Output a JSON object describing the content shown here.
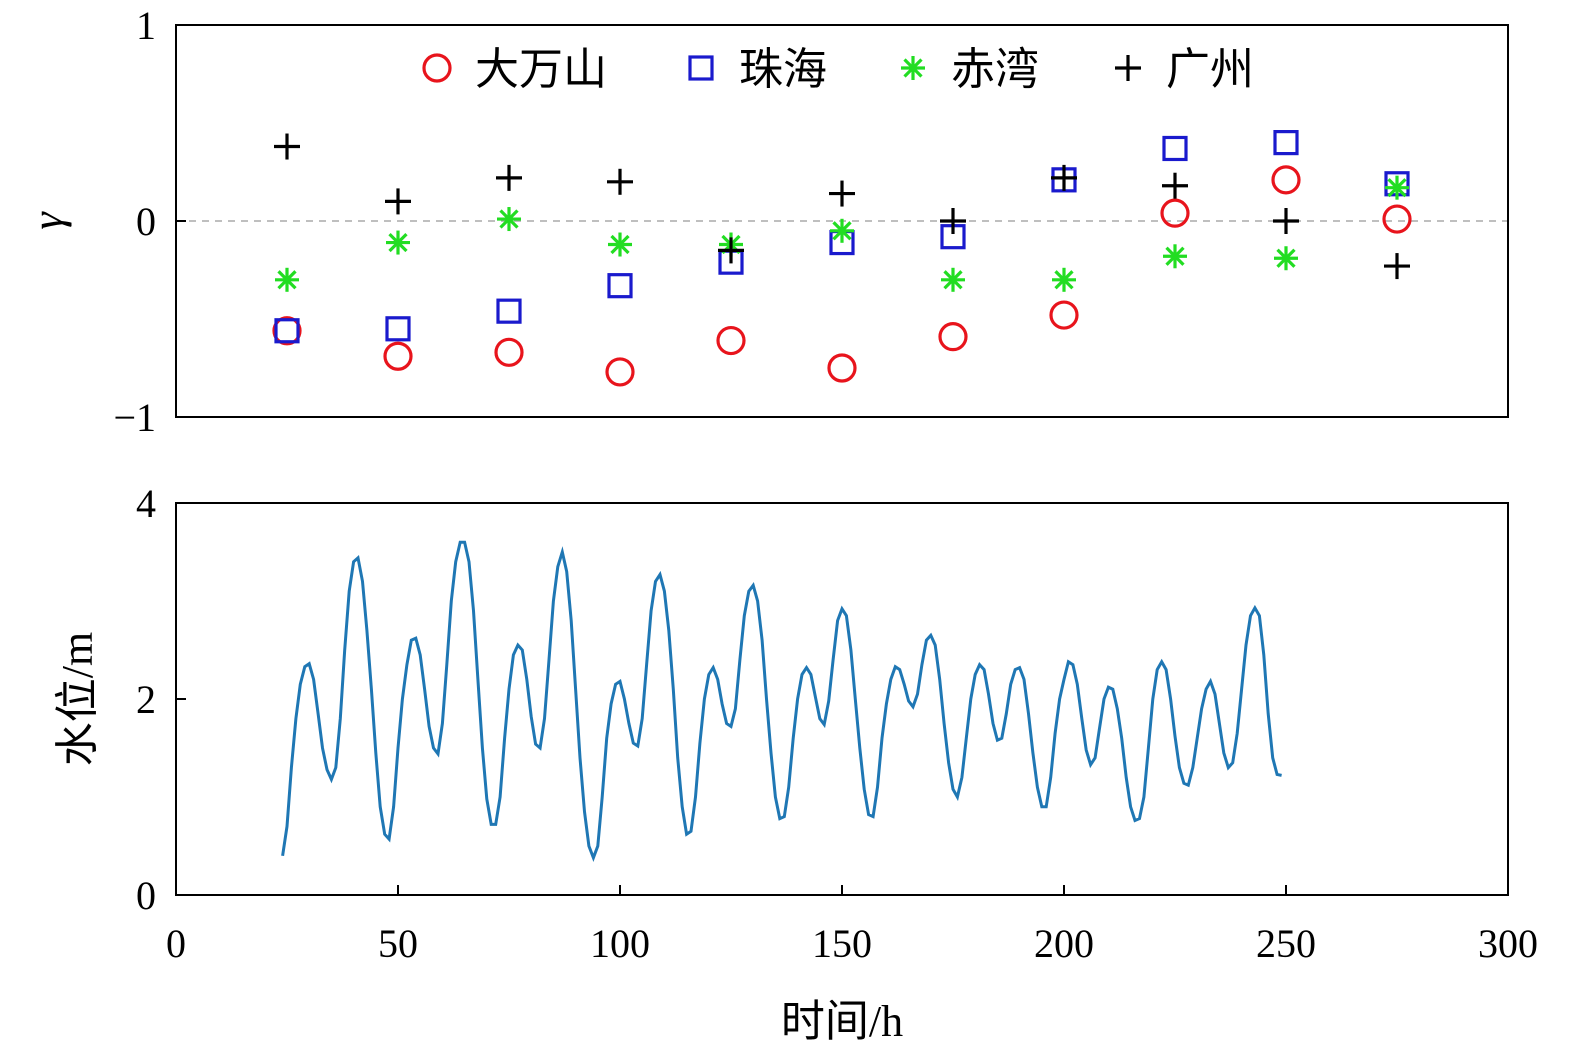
{
  "chart_data": [
    {
      "type": "scatter",
      "ylabel": "γ",
      "xlim": [
        0,
        300
      ],
      "ylim": [
        -1,
        1
      ],
      "y_ticks": [
        "−1",
        "0",
        "1"
      ],
      "reference_line": {
        "y": 0,
        "style": "dashed",
        "color": "#aaaaaa"
      },
      "legend_position": "top",
      "x": [
        25,
        50,
        75,
        100,
        125,
        150,
        175,
        200,
        225,
        250,
        275
      ],
      "series": [
        {
          "name": "大万山",
          "marker": "circle",
          "color": "#e8141c",
          "values": [
            -0.56,
            -0.69,
            -0.67,
            -0.77,
            -0.61,
            -0.75,
            -0.59,
            -0.48,
            0.04,
            0.21,
            0.01
          ]
        },
        {
          "name": "珠海",
          "marker": "square",
          "color": "#1a1acd",
          "values": [
            -0.56,
            -0.55,
            -0.46,
            -0.33,
            -0.21,
            -0.11,
            -0.08,
            0.21,
            0.37,
            0.4,
            0.19
          ]
        },
        {
          "name": "赤湾",
          "marker": "asterisk",
          "color": "#22dd22",
          "values": [
            -0.3,
            -0.11,
            0.01,
            -0.12,
            -0.12,
            -0.05,
            -0.3,
            -0.3,
            -0.18,
            -0.19,
            0.17
          ]
        },
        {
          "name": "广州",
          "marker": "plus",
          "color": "#000000",
          "values": [
            0.38,
            0.1,
            0.22,
            0.2,
            -0.15,
            0.14,
            0.0,
            0.22,
            0.18,
            0.0,
            -0.23
          ]
        }
      ]
    },
    {
      "type": "line",
      "ylabel": "水位/m",
      "xlabel": "时间/h",
      "xlim": [
        0,
        300
      ],
      "ylim": [
        0,
        4
      ],
      "y_ticks": [
        "0",
        "2",
        "4"
      ],
      "x_ticks": [
        "0",
        "50",
        "100",
        "150",
        "200",
        "250",
        "300"
      ],
      "series": [
        {
          "color": "#1f77b4",
          "points": [
            [
              24,
              0.4
            ],
            [
              25,
              0.7
            ],
            [
              26,
              1.3
            ],
            [
              27,
              1.8
            ],
            [
              28,
              2.15
            ],
            [
              29,
              2.33
            ],
            [
              30,
              2.36
            ],
            [
              31,
              2.2
            ],
            [
              32,
              1.85
            ],
            [
              33,
              1.5
            ],
            [
              34,
              1.28
            ],
            [
              35,
              1.18
            ],
            [
              36,
              1.3
            ],
            [
              37,
              1.8
            ],
            [
              38,
              2.5
            ],
            [
              39,
              3.1
            ],
            [
              40,
              3.4
            ],
            [
              41,
              3.44
            ],
            [
              42,
              3.2
            ],
            [
              43,
              2.7
            ],
            [
              44,
              2.1
            ],
            [
              45,
              1.45
            ],
            [
              46,
              0.9
            ],
            [
              47,
              0.62
            ],
            [
              48,
              0.57
            ],
            [
              49,
              0.9
            ],
            [
              50,
              1.5
            ],
            [
              51,
              2.0
            ],
            [
              52,
              2.35
            ],
            [
              53,
              2.6
            ],
            [
              54,
              2.62
            ],
            [
              55,
              2.45
            ],
            [
              56,
              2.1
            ],
            [
              57,
              1.72
            ],
            [
              58,
              1.5
            ],
            [
              59,
              1.44
            ],
            [
              60,
              1.75
            ],
            [
              61,
              2.35
            ],
            [
              62,
              3.0
            ],
            [
              63,
              3.4
            ],
            [
              64,
              3.6
            ],
            [
              65,
              3.6
            ],
            [
              66,
              3.4
            ],
            [
              67,
              2.9
            ],
            [
              68,
              2.2
            ],
            [
              69,
              1.5
            ],
            [
              70,
              0.98
            ],
            [
              71,
              0.72
            ],
            [
              72,
              0.72
            ],
            [
              73,
              1.0
            ],
            [
              74,
              1.6
            ],
            [
              75,
              2.1
            ],
            [
              76,
              2.45
            ],
            [
              77,
              2.55
            ],
            [
              78,
              2.5
            ],
            [
              79,
              2.2
            ],
            [
              80,
              1.82
            ],
            [
              81,
              1.54
            ],
            [
              82,
              1.5
            ],
            [
              83,
              1.8
            ],
            [
              84,
              2.4
            ],
            [
              85,
              3.0
            ],
            [
              86,
              3.35
            ],
            [
              87,
              3.5
            ],
            [
              88,
              3.3
            ],
            [
              89,
              2.8
            ],
            [
              90,
              2.1
            ],
            [
              91,
              1.4
            ],
            [
              92,
              0.85
            ],
            [
              93,
              0.5
            ],
            [
              94,
              0.38
            ],
            [
              95,
              0.5
            ],
            [
              96,
              1.0
            ],
            [
              97,
              1.6
            ],
            [
              98,
              1.95
            ],
            [
              99,
              2.15
            ],
            [
              100,
              2.18
            ],
            [
              101,
              2.0
            ],
            [
              102,
              1.75
            ],
            [
              103,
              1.55
            ],
            [
              104,
              1.52
            ],
            [
              105,
              1.8
            ],
            [
              106,
              2.35
            ],
            [
              107,
              2.9
            ],
            [
              108,
              3.2
            ],
            [
              109,
              3.27
            ],
            [
              110,
              3.1
            ],
            [
              111,
              2.7
            ],
            [
              112,
              2.1
            ],
            [
              113,
              1.4
            ],
            [
              114,
              0.9
            ],
            [
              115,
              0.62
            ],
            [
              116,
              0.65
            ],
            [
              117,
              1.0
            ],
            [
              118,
              1.55
            ],
            [
              119,
              2.0
            ],
            [
              120,
              2.25
            ],
            [
              121,
              2.32
            ],
            [
              122,
              2.2
            ],
            [
              123,
              1.95
            ],
            [
              124,
              1.75
            ],
            [
              125,
              1.72
            ],
            [
              126,
              1.9
            ],
            [
              127,
              2.4
            ],
            [
              128,
              2.85
            ],
            [
              129,
              3.1
            ],
            [
              130,
              3.16
            ],
            [
              131,
              3.0
            ],
            [
              132,
              2.6
            ],
            [
              133,
              2.0
            ],
            [
              134,
              1.45
            ],
            [
              135,
              1.0
            ],
            [
              136,
              0.78
            ],
            [
              137,
              0.8
            ],
            [
              138,
              1.1
            ],
            [
              139,
              1.6
            ],
            [
              140,
              2.0
            ],
            [
              141,
              2.25
            ],
            [
              142,
              2.32
            ],
            [
              143,
              2.25
            ],
            [
              144,
              2.02
            ],
            [
              145,
              1.8
            ],
            [
              146,
              1.74
            ],
            [
              147,
              1.98
            ],
            [
              148,
              2.4
            ],
            [
              149,
              2.8
            ],
            [
              150,
              2.92
            ],
            [
              151,
              2.85
            ],
            [
              152,
              2.5
            ],
            [
              153,
              2.0
            ],
            [
              154,
              1.5
            ],
            [
              155,
              1.08
            ],
            [
              156,
              0.82
            ],
            [
              157,
              0.8
            ],
            [
              158,
              1.1
            ],
            [
              159,
              1.6
            ],
            [
              160,
              1.95
            ],
            [
              161,
              2.2
            ],
            [
              162,
              2.33
            ],
            [
              163,
              2.3
            ],
            [
              164,
              2.15
            ],
            [
              165,
              1.98
            ],
            [
              166,
              1.92
            ],
            [
              167,
              2.05
            ],
            [
              168,
              2.35
            ],
            [
              169,
              2.6
            ],
            [
              170,
              2.65
            ],
            [
              171,
              2.55
            ],
            [
              172,
              2.2
            ],
            [
              173,
              1.75
            ],
            [
              174,
              1.35
            ],
            [
              175,
              1.08
            ],
            [
              176,
              1.0
            ],
            [
              177,
              1.2
            ],
            [
              178,
              1.6
            ],
            [
              179,
              2.0
            ],
            [
              180,
              2.25
            ],
            [
              181,
              2.35
            ],
            [
              182,
              2.3
            ],
            [
              183,
              2.05
            ],
            [
              184,
              1.75
            ],
            [
              185,
              1.58
            ],
            [
              186,
              1.6
            ],
            [
              187,
              1.85
            ],
            [
              188,
              2.15
            ],
            [
              189,
              2.3
            ],
            [
              190,
              2.32
            ],
            [
              191,
              2.2
            ],
            [
              192,
              1.85
            ],
            [
              193,
              1.45
            ],
            [
              194,
              1.1
            ],
            [
              195,
              0.9
            ],
            [
              196,
              0.9
            ],
            [
              197,
              1.2
            ],
            [
              198,
              1.65
            ],
            [
              199,
              2.0
            ],
            [
              200,
              2.2
            ],
            [
              201,
              2.38
            ],
            [
              202,
              2.35
            ],
            [
              203,
              2.15
            ],
            [
              204,
              1.8
            ],
            [
              205,
              1.48
            ],
            [
              206,
              1.33
            ],
            [
              207,
              1.4
            ],
            [
              208,
              1.7
            ],
            [
              209,
              2.0
            ],
            [
              210,
              2.12
            ],
            [
              211,
              2.1
            ],
            [
              212,
              1.9
            ],
            [
              213,
              1.6
            ],
            [
              214,
              1.2
            ],
            [
              215,
              0.9
            ],
            [
              216,
              0.76
            ],
            [
              217,
              0.78
            ],
            [
              218,
              1.0
            ],
            [
              219,
              1.5
            ],
            [
              220,
              2.0
            ],
            [
              221,
              2.3
            ],
            [
              222,
              2.38
            ],
            [
              223,
              2.3
            ],
            [
              224,
              2.0
            ],
            [
              225,
              1.62
            ],
            [
              226,
              1.3
            ],
            [
              227,
              1.14
            ],
            [
              228,
              1.12
            ],
            [
              229,
              1.3
            ],
            [
              230,
              1.6
            ],
            [
              231,
              1.9
            ],
            [
              232,
              2.1
            ],
            [
              233,
              2.18
            ],
            [
              234,
              2.05
            ],
            [
              235,
              1.75
            ],
            [
              236,
              1.45
            ],
            [
              237,
              1.3
            ],
            [
              238,
              1.35
            ],
            [
              239,
              1.65
            ],
            [
              240,
              2.1
            ],
            [
              241,
              2.55
            ],
            [
              242,
              2.85
            ],
            [
              243,
              2.93
            ],
            [
              244,
              2.85
            ],
            [
              245,
              2.45
            ],
            [
              246,
              1.85
            ],
            [
              247,
              1.4
            ],
            [
              248,
              1.23
            ],
            [
              249,
              1.22
            ]
          ]
        }
      ]
    }
  ]
}
